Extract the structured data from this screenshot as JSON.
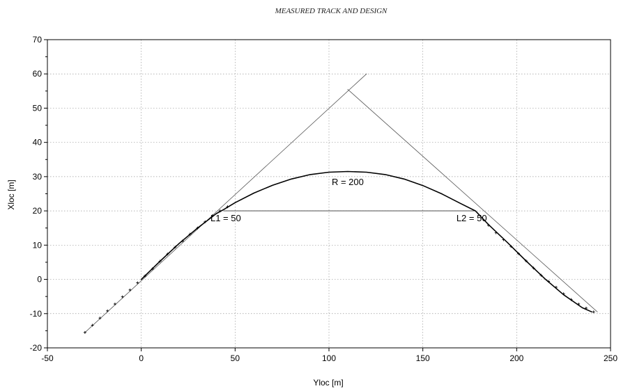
{
  "chart_data": {
    "type": "line",
    "title": "MEASURED TRACK AND DESIGN",
    "xlabel": "Yloc [m]",
    "ylabel": "Xloc [m]",
    "xlim": [
      -50,
      250
    ],
    "ylim": [
      -20,
      70
    ],
    "xticks": [
      -50,
      0,
      50,
      100,
      150,
      200,
      250
    ],
    "yticks": [
      -20,
      -10,
      0,
      10,
      20,
      30,
      40,
      50,
      60,
      70
    ],
    "grid": true,
    "series": [
      {
        "role": "tangent-1",
        "x": [
          -30,
          120
        ],
        "y": [
          -15.5,
          60
        ],
        "color": "#555555",
        "width": 0.8
      },
      {
        "role": "tangent-2",
        "x": [
          110,
          243
        ],
        "y": [
          55.5,
          -9.5
        ],
        "color": "#555555",
        "width": 0.8
      },
      {
        "role": "chord",
        "x": [
          44,
          178
        ],
        "y": [
          20,
          20
        ],
        "color": "#333333",
        "width": 0.9
      },
      {
        "role": "design-curve",
        "x": [
          0,
          10,
          20,
          30,
          40,
          44,
          50,
          60,
          70,
          80,
          90,
          100,
          110,
          120,
          130,
          140,
          150,
          160,
          170,
          178,
          185,
          195,
          205,
          215,
          225,
          235,
          240
        ],
        "y": [
          0,
          5.3,
          10.4,
          15.0,
          19.2,
          20.4,
          22.4,
          25.2,
          27.5,
          29.3,
          30.6,
          31.3,
          31.5,
          31.3,
          30.6,
          29.3,
          27.4,
          25.0,
          22.2,
          20.0,
          16.0,
          10.8,
          5.4,
          0.2,
          -4.5,
          -8.3,
          -9.5
        ],
        "color": "#000000",
        "width": 1.6
      },
      {
        "role": "measured-points",
        "x": [
          -30,
          -26,
          -22,
          -18,
          -14,
          -10,
          -6,
          -2,
          2,
          6,
          10,
          14,
          18,
          22,
          26,
          30,
          34,
          38,
          42,
          46,
          185,
          189,
          193,
          197,
          201,
          205,
          209,
          213,
          217,
          221,
          225,
          229,
          233,
          237,
          241
        ],
        "y": [
          -15.5,
          -13.4,
          -11.3,
          -9.2,
          -7.2,
          -5.1,
          -3.1,
          -1.0,
          1.0,
          3.1,
          5.3,
          7.4,
          9.4,
          11.2,
          13.2,
          15.0,
          16.8,
          18.6,
          20.0,
          21.2,
          15.8,
          13.6,
          11.6,
          9.6,
          7.5,
          5.4,
          3.3,
          1.2,
          -0.6,
          -2.3,
          -4.2,
          -5.9,
          -7.2,
          -8.4,
          -9.5
        ],
        "color": "#000000"
      }
    ],
    "annotations": [
      {
        "text": "R =  200",
        "x": 110,
        "y": 27.5
      },
      {
        "text": "L1 =  50",
        "x": 45,
        "y": 17
      },
      {
        "text": "L2 =  50",
        "x": 176,
        "y": 17
      }
    ]
  }
}
